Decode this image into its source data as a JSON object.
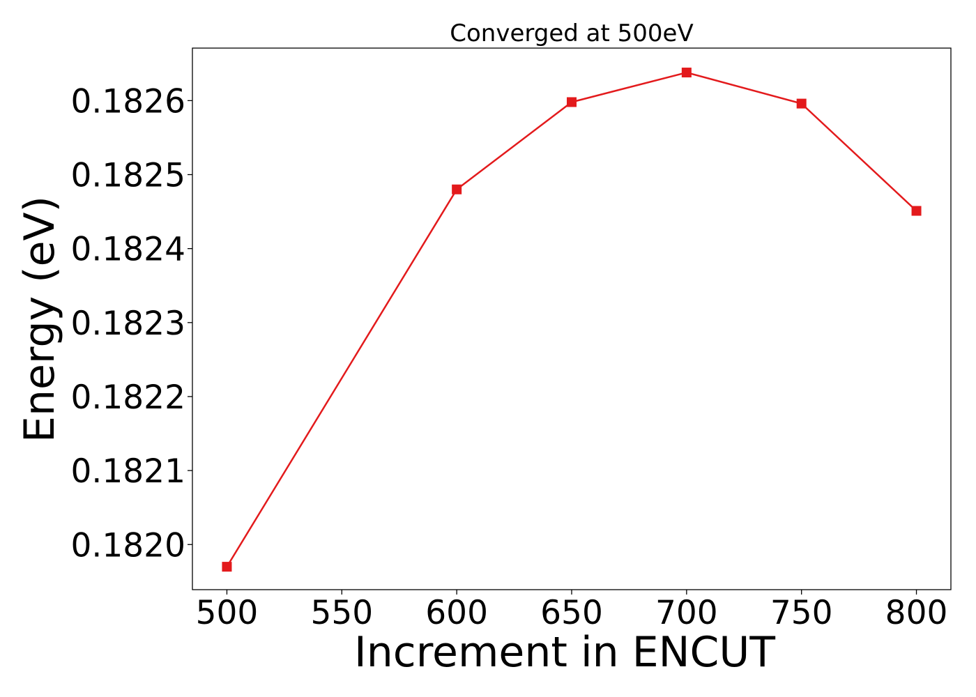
{
  "chart_data": {
    "type": "line",
    "title": "Converged at 500eV",
    "xlabel": "Increment in ENCUT",
    "ylabel": "Energy (eV)",
    "x": [
      500,
      600,
      650,
      700,
      750,
      800
    ],
    "series": [
      {
        "values": [
          0.18197,
          0.18248,
          0.182598,
          0.182638,
          0.182596,
          0.182451
        ],
        "color": "#e31a1c",
        "marker": "square"
      }
    ],
    "xticks": [
      500,
      550,
      600,
      650,
      700,
      750,
      800
    ],
    "xtick_labels": [
      "500",
      "550",
      "600",
      "650",
      "700",
      "750",
      "800"
    ],
    "yticks": [
      0.182,
      0.1821,
      0.1822,
      0.1823,
      0.1824,
      0.1825,
      0.1826
    ],
    "ytick_labels": [
      "0.1820",
      "0.1821",
      "0.1822",
      "0.1823",
      "0.1824",
      "0.1825",
      "0.1826"
    ],
    "xlim": [
      485,
      815
    ],
    "ylim": [
      0.181939,
      0.182671
    ],
    "grid": false,
    "legend": "none"
  }
}
